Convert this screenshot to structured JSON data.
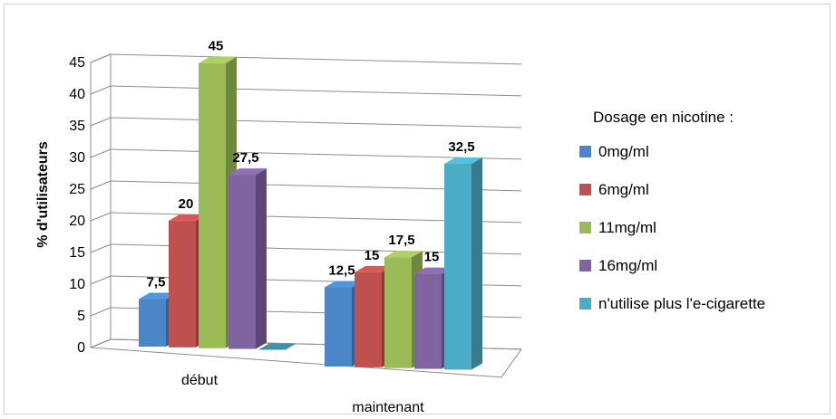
{
  "chart_data": {
    "type": "bar",
    "three_d": true,
    "title": "",
    "xlabel": "",
    "ylabel": "% d'utilisateurs",
    "ylim": [
      0,
      45
    ],
    "y_ticks": [
      "0",
      "5",
      "10",
      "15",
      "20",
      "25",
      "30",
      "35",
      "40",
      "45"
    ],
    "categories": [
      "début",
      "maintenant"
    ],
    "legend_title": "Dosage en nicotine :",
    "legend_position": "right",
    "grid": true,
    "series": [
      {
        "name": "0mg/ml",
        "color": "#4a86c8",
        "values": [
          7.5,
          12.5
        ],
        "labels": [
          "7,5",
          "12,5"
        ]
      },
      {
        "name": "6mg/ml",
        "color": "#c0504d",
        "values": [
          20,
          15
        ],
        "labels": [
          "20",
          "15"
        ]
      },
      {
        "name": "11mg/ml",
        "color": "#9bbb59",
        "values": [
          45,
          17.5
        ],
        "labels": [
          "45",
          "17,5"
        ]
      },
      {
        "name": "16mg/ml",
        "color": "#8064a2",
        "values": [
          27.5,
          15
        ],
        "labels": [
          "27,5",
          "15"
        ]
      },
      {
        "name": "n'utilise plus l'e-cigarette",
        "color": "#4bacc6",
        "values": [
          0,
          32.5
        ],
        "labels": [
          "",
          "32,5"
        ]
      }
    ]
  }
}
